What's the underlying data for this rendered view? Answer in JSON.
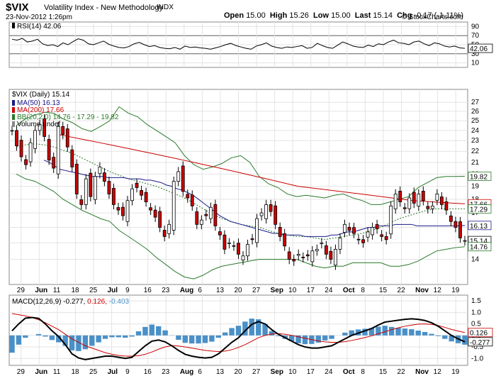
{
  "header": {
    "symbol": "$VIX",
    "name": "Volatility Index - New Methodology",
    "exchange": "INDX",
    "date": "23-Nov-2012 1:26pm",
    "copyright": "© StockCharts.com",
    "quote": {
      "open_label": "Open",
      "open": "15.00",
      "high_label": "High",
      "high": "15.26",
      "low_label": "Low",
      "low": "15.00",
      "last_label": "Last",
      "last": "15.14",
      "chg_label": "Chg",
      "chg": "-0.17 (-1.11%)"
    }
  },
  "chart_data": [
    {
      "type": "line",
      "panel": "rsi",
      "legend": "RSI(14) 42.06",
      "y_ticks": [
        "90",
        "70",
        "50",
        "30",
        "10"
      ],
      "ylim": [
        0,
        100
      ],
      "reference_lines": [
        70,
        30
      ],
      "last_label": "42.06",
      "values": [
        62,
        60,
        64,
        56,
        58,
        62,
        52,
        48,
        50,
        46,
        54,
        50,
        57,
        63,
        60,
        52,
        50,
        54,
        58,
        51,
        47,
        44,
        43,
        46,
        52,
        55,
        50,
        46,
        48,
        44,
        42,
        41,
        44,
        40,
        47,
        44,
        45,
        43,
        42,
        40,
        43,
        46,
        50,
        53,
        48,
        45,
        42,
        40,
        47,
        50,
        54,
        47,
        44,
        42,
        45,
        44,
        46,
        48,
        42,
        44,
        53,
        48,
        44,
        42,
        49,
        56,
        52,
        47,
        45,
        44,
        49,
        46,
        52,
        50,
        56,
        60,
        54,
        53,
        50,
        56,
        58,
        52,
        48,
        54,
        52,
        47,
        45,
        47,
        43,
        42
      ]
    },
    {
      "type": "candlestick",
      "panel": "price",
      "legend": {
        "title": "$VIX (Daily) 15.14",
        "ma50": "MA(50) 16.13",
        "ma200": "MA(200) 17.66",
        "bb": "BB(20,2.0) 14.76 - 17.29 - 19.82",
        "volume": "Volume undef"
      },
      "y_ticks": [
        "27",
        "26",
        "25",
        "24",
        "23",
        "22",
        "21",
        "20",
        "19",
        "18",
        "17",
        "16",
        "15",
        "14"
      ],
      "y_labels": [
        27,
        26,
        25,
        24,
        23,
        22,
        21,
        20,
        19,
        18,
        17,
        16,
        15,
        14
      ],
      "ylim": [
        12.6,
        28.5
      ],
      "scale": "log",
      "last_labels": [
        {
          "text": "19.82",
          "value": 19.82,
          "color": "#2a7a2a"
        },
        {
          "text": "17.66",
          "value": 17.66,
          "color": "#cc0000"
        },
        {
          "text": "17.29",
          "value": 17.29,
          "color": "#2a7a2a"
        },
        {
          "text": "16.13",
          "value": 16.13,
          "color": "#1a1a8c"
        },
        {
          "text": "15.14",
          "value": 15.14,
          "color": "#000000"
        },
        {
          "text": "14.76",
          "value": 14.76,
          "color": "#2a7a2a"
        }
      ],
      "closes": [
        24,
        22.5,
        21.5,
        20.8,
        22.8,
        24.0,
        24.6,
        23.4,
        21.2,
        20.5,
        24.4,
        23.6,
        22.4,
        20.6,
        18.4,
        17.6,
        19.6,
        18.2,
        19.8,
        20.6,
        19.4,
        18.4,
        17.6,
        17.2,
        16.8,
        17.9,
        18.8,
        18.9,
        18.3,
        17.8,
        17.2,
        16.7,
        16.0,
        15.4,
        16.2,
        19.4,
        20.2,
        18.6,
        18.1,
        17.5,
        16.2,
        16.5,
        16.8,
        17.4,
        16.1,
        15.5,
        14.6,
        15.0,
        14.8,
        14.3,
        14.2,
        14.9,
        15.2,
        16.6,
        17.0,
        17.6,
        17.1,
        16.2,
        15.4,
        14.8,
        14.0,
        13.9,
        14.3,
        14.1,
        14.2,
        14.5,
        14.6,
        15.0,
        14.3,
        14.0,
        14.6,
        15.3,
        16.2,
        15.8,
        15.6,
        15.2,
        15.0,
        15.7,
        16.0,
        15.9,
        15.4,
        15.2,
        17.5,
        18.4,
        17.8,
        17.3,
        18.1,
        17.7,
        18.4,
        17.9,
        17.3,
        17.5,
        18.4,
        17.6,
        17.2,
        16.4,
        16.0,
        15.31,
        15.14
      ],
      "ma50": [
        21.2,
        21.0,
        20.7,
        20.4,
        20.3,
        20.2,
        20.1,
        20.0,
        19.9,
        19.8,
        19.8,
        19.8,
        19.7,
        19.7,
        19.7,
        19.7,
        19.6,
        19.6,
        19.6,
        19.5,
        19.5,
        19.4,
        19.3,
        19.1,
        19.0,
        18.8,
        18.7,
        18.5,
        18.3,
        18.0,
        17.7,
        17.4,
        17.1,
        16.8,
        16.6,
        16.4,
        16.3,
        16.2,
        16.1,
        16.0,
        15.9,
        15.8,
        15.7,
        15.6,
        15.6,
        15.5,
        15.5,
        15.5,
        15.5,
        15.4,
        15.4,
        15.4,
        15.4,
        15.4,
        15.5,
        15.5,
        15.6,
        15.7,
        15.7,
        15.8,
        15.9,
        16.0,
        16.0,
        16.1,
        16.1,
        16.1,
        16.2,
        16.2,
        16.2,
        16.2,
        16.1,
        16.1,
        16.1,
        16.1,
        16.1,
        16.1,
        16.1,
        16.1,
        16.1,
        16.13
      ],
      "ma200": [
        23.6,
        23.4,
        23.2,
        23.0,
        22.8,
        22.6,
        22.4,
        22.2,
        22.0,
        21.8,
        21.6,
        21.4,
        21.2,
        21.0,
        20.8,
        20.6,
        20.4,
        20.2,
        20.0,
        19.8,
        19.6,
        19.4,
        19.2,
        19.0,
        18.9,
        18.8,
        18.7,
        18.6,
        18.5,
        18.4,
        18.3,
        18.2,
        18.1,
        18.0,
        17.9,
        17.85,
        17.8,
        17.75,
        17.7,
        17.66
      ],
      "bb_upper": [
        24.5,
        25.2,
        25.6,
        25.9,
        25.8,
        25.2,
        24.8,
        24.2,
        23.9,
        24.4,
        25.0,
        26.5,
        25.8,
        25.4,
        24.6,
        24.0,
        23.4,
        22.8,
        21.6,
        20.8,
        20.4,
        20.6,
        20.9,
        21.4,
        21.6,
        21.0,
        19.8,
        19.2,
        18.9,
        18.4,
        18.2,
        18.3,
        18.2,
        18.1,
        18.3,
        18.4,
        18.1,
        17.9,
        17.6,
        17.6,
        17.8,
        18.0,
        18.2,
        18.9,
        19.3,
        19.7,
        19.8,
        19.8,
        19.82
      ],
      "bb_mid": [
        22.4,
        22.6,
        22.7,
        22.6,
        22.4,
        22.1,
        21.8,
        21.4,
        21.0,
        20.6,
        20.2,
        19.9,
        19.6,
        19.4,
        19.2,
        19.0,
        18.7,
        18.4,
        18.1,
        17.7,
        17.3,
        16.9,
        16.6,
        16.4,
        16.2,
        16.1,
        16.0,
        15.8,
        15.6,
        15.5,
        15.4,
        15.4,
        15.3,
        15.2,
        15.3,
        15.4,
        15.5,
        15.6,
        15.8,
        16.0,
        16.3,
        16.6,
        16.8,
        17.0,
        17.2,
        17.3,
        17.3,
        17.3,
        17.29
      ],
      "bb_lower": [
        20.0,
        19.6,
        19.4,
        19.0,
        18.6,
        18.0,
        17.6,
        17.2,
        16.9,
        16.6,
        16.4,
        15.8,
        15.4,
        15.0,
        14.6,
        14.1,
        13.7,
        13.3,
        13.0,
        12.9,
        13.1,
        13.4,
        13.6,
        13.7,
        13.8,
        13.9,
        14.0,
        14.0,
        14.0,
        14.0,
        14.0,
        13.8,
        13.6,
        13.5,
        13.6,
        13.6,
        13.8,
        13.8,
        13.8,
        13.8,
        13.6,
        13.6,
        13.7,
        13.9,
        14.2,
        14.5,
        14.6,
        14.7,
        14.76
      ]
    },
    {
      "type": "line",
      "panel": "macd",
      "legend": {
        "title": "MACD(12,26,9)",
        "macd": "-0.277",
        "signal": "0.126",
        "hist": "-0.403"
      },
      "y_ticks": [
        "1.5",
        "1.0",
        "0.5",
        "0.0",
        "-0.5",
        "-1.0"
      ],
      "ylim": [
        -1.3,
        1.75
      ],
      "last_labels": [
        {
          "text": "0.126",
          "value": 0.126,
          "color": "#cc0000"
        },
        {
          "text": "-0.277",
          "value": -0.277,
          "color": "#000000"
        }
      ],
      "macd": [
        0.2,
        0.5,
        0.75,
        0.78,
        0.74,
        0.5,
        0.2,
        -0.05,
        -0.4,
        -0.8,
        -0.98,
        -1.05,
        -1.0,
        -0.95,
        -0.9,
        -0.9,
        -0.95,
        -1.0,
        -0.95,
        -0.7,
        -0.45,
        -0.25,
        -0.2,
        -0.28,
        -0.45,
        -0.65,
        -0.82,
        -0.9,
        -0.95,
        -0.98,
        -0.95,
        -0.8,
        -0.55,
        -0.3,
        -0.1,
        0.2,
        0.48,
        0.6,
        0.5,
        0.25,
        0.05,
        -0.1,
        -0.25,
        -0.4,
        -0.5,
        -0.55,
        -0.55,
        -0.5,
        -0.45,
        -0.3,
        -0.15,
        0.0,
        0.1,
        0.2,
        0.3,
        0.45,
        0.58,
        0.62,
        0.66,
        0.7,
        0.72,
        0.7,
        0.65,
        0.55,
        0.4,
        0.2,
        0.0,
        -0.15,
        -0.277
      ],
      "signal": [
        0.95,
        0.9,
        0.85,
        0.78,
        0.68,
        0.55,
        0.4,
        0.25,
        0.05,
        -0.15,
        -0.3,
        -0.45,
        -0.55,
        -0.65,
        -0.75,
        -0.82,
        -0.87,
        -0.9,
        -0.9,
        -0.88,
        -0.82,
        -0.72,
        -0.6,
        -0.5,
        -0.44,
        -0.46,
        -0.5,
        -0.55,
        -0.6,
        -0.65,
        -0.68,
        -0.7,
        -0.68,
        -0.62,
        -0.52,
        -0.4,
        -0.25,
        -0.1,
        0.0,
        0.06,
        0.08,
        0.05,
        0.0,
        -0.06,
        -0.12,
        -0.18,
        -0.24,
        -0.28,
        -0.3,
        -0.3,
        -0.27,
        -0.22,
        -0.16,
        -0.09,
        -0.02,
        0.07,
        0.16,
        0.25,
        0.33,
        0.4,
        0.45,
        0.49,
        0.5,
        0.48,
        0.43,
        0.35,
        0.26,
        0.19,
        0.126
      ]
    }
  ],
  "x_axis": {
    "labels": [
      "29",
      "Jun",
      "11",
      "18",
      "25",
      "Jul",
      "9",
      "16",
      "23",
      "Aug",
      "6",
      "13",
      "20",
      "27",
      "Sep",
      "10",
      "17",
      "24",
      "Oct",
      "8",
      "15",
      "22",
      "Nov",
      "12",
      "19"
    ],
    "bold": [
      "Jun",
      "Jul",
      "Aug",
      "Sep",
      "Oct",
      "Nov"
    ]
  },
  "colors": {
    "rsi": "#000000",
    "ma50": "#1a1a8c",
    "ma200": "#cc0000",
    "bb": "#2a7a2a",
    "bb_mid": "#2a7a2a",
    "up_candle": "#ffffff",
    "down_candle": "#cc0000",
    "histogram": "#4a90c8",
    "macd": "#000000",
    "signal": "#cc0000"
  }
}
